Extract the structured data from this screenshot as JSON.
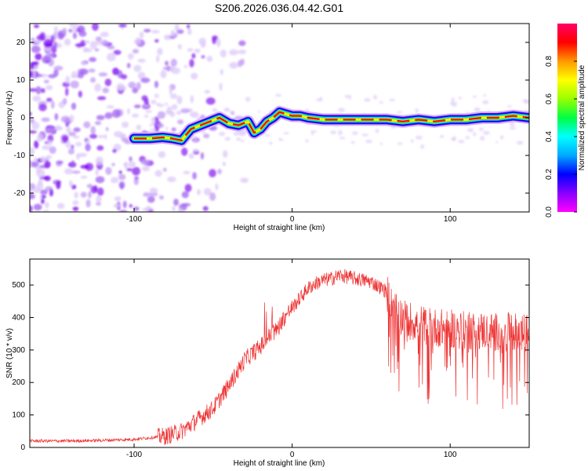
{
  "title": "S206.2026.036.04.42.G01",
  "chart_data": [
    {
      "type": "heatmap",
      "xlabel": "Height of straight line (km)",
      "ylabel": "Frequency (Hz)",
      "xlim": [
        -166,
        150
      ],
      "ylim": [
        -25,
        25
      ],
      "xticks": [
        -100,
        0,
        100
      ],
      "yticks": [
        -20,
        -10,
        0,
        10,
        20
      ],
      "colorbar": {
        "label": "Normalized spectral amplitude",
        "range": [
          0,
          1
        ],
        "ticks": [
          0.0,
          0.2,
          0.4,
          0.6,
          0.8
        ],
        "tick_labels": [
          "0.0",
          "0.2",
          "0.4",
          "0.6",
          "0.8"
        ],
        "colors": [
          "#ff00ff",
          "#8800ff",
          "#0000ff",
          "#00aaff",
          "#00ffff",
          "#00ff44",
          "#99ff00",
          "#ffff00",
          "#ff9900",
          "#ff0000",
          "#ff0066"
        ]
      },
      "ridge": {
        "x": [
          -100,
          -90,
          -82,
          -76,
          -70,
          -64,
          -58,
          -52,
          -46,
          -40,
          -34,
          -28,
          -24,
          -20,
          -16,
          -12,
          -8,
          -4,
          0,
          5,
          10,
          20,
          30,
          40,
          50,
          60,
          70,
          80,
          90,
          100,
          110,
          120,
          130,
          140,
          150
        ],
        "y": [
          -5.5,
          -5.5,
          -5.2,
          -5.5,
          -6,
          -3,
          -2,
          -1,
          0,
          -1.5,
          -2,
          -1,
          -4,
          -3,
          -1,
          0,
          1.5,
          1,
          0.5,
          0.5,
          0,
          -0.5,
          -0.5,
          -0.5,
          -0.5,
          -0.5,
          -1,
          -0.5,
          -1,
          -0.5,
          -0.5,
          0,
          0,
          0.5,
          0
        ]
      }
    },
    {
      "type": "line",
      "xlabel": "Height of straight line (km)",
      "ylabel": "SNR (10 * v/v)",
      "xlim": [
        -166,
        150
      ],
      "ylim": [
        0,
        580
      ],
      "xticks": [
        -100,
        0,
        100
      ],
      "yticks": [
        0,
        100,
        200,
        300,
        400,
        500
      ],
      "color": "#ee3333",
      "series": [
        {
          "name": "SNR",
          "x": [
            -166,
            -140,
            -120,
            -100,
            -90,
            -80,
            -70,
            -60,
            -50,
            -40,
            -35,
            -30,
            -25,
            -20,
            -15,
            -10,
            -5,
            0,
            5,
            10,
            15,
            20,
            25,
            30,
            35,
            40,
            50,
            60,
            62,
            70,
            80,
            90,
            100,
            110,
            120,
            130,
            140,
            150
          ],
          "values": [
            20,
            20,
            22,
            25,
            30,
            35,
            50,
            85,
            120,
            190,
            230,
            270,
            290,
            310,
            340,
            360,
            400,
            430,
            460,
            490,
            505,
            515,
            520,
            530,
            525,
            520,
            510,
            480,
            440,
            400,
            380,
            370,
            365,
            360,
            360,
            355,
            355,
            350
          ]
        }
      ]
    }
  ]
}
